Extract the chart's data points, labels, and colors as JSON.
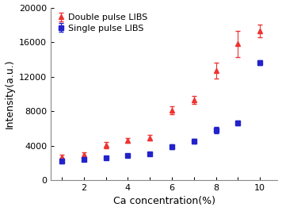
{
  "double_x": [
    1,
    2,
    3,
    4,
    5,
    6,
    7,
    8,
    9,
    10
  ],
  "double_y": [
    2700,
    2900,
    4050,
    4600,
    4900,
    8100,
    9300,
    12700,
    15800,
    17300
  ],
  "double_yerr": [
    250,
    300,
    350,
    280,
    320,
    500,
    450,
    900,
    1500,
    700
  ],
  "single_x": [
    1,
    2,
    3,
    4,
    5,
    6,
    7,
    8,
    9,
    10
  ],
  "single_y": [
    2200,
    2350,
    2550,
    2850,
    3000,
    3900,
    4500,
    5800,
    6600,
    13600
  ],
  "single_yerr": [
    280,
    180,
    180,
    180,
    180,
    280,
    280,
    350,
    280,
    280
  ],
  "xlabel": "Ca concentration(%)",
  "ylabel": "Intensity(a.u.)",
  "ylim": [
    0,
    20000
  ],
  "xlim": [
    0.5,
    10.8
  ],
  "yticks": [
    0,
    4000,
    8000,
    12000,
    16000,
    20000
  ],
  "xticks": [
    2,
    4,
    6,
    8,
    10
  ],
  "all_xticks": [
    1,
    2,
    3,
    4,
    5,
    6,
    7,
    8,
    9,
    10
  ],
  "double_color": "#ee3333",
  "single_color": "#2222cc",
  "double_label": "Double pulse LIBS",
  "single_label": "Single pulse LIBS",
  "double_marker": "^",
  "single_marker": "s",
  "marker_size": 4,
  "capsize": 2.5,
  "elinewidth": 0.8,
  "background_color": "#ffffff",
  "legend_fontsize": 8,
  "axis_fontsize": 9,
  "tick_fontsize": 8
}
